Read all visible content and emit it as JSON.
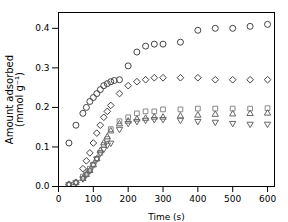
{
  "chart_data": {
    "type": "scatter",
    "xlabel": "Time (s)",
    "ylabel": "Amount adsorbed\n(mmol g⁻¹)",
    "xlim": [
      0,
      620
    ],
    "ylim": [
      0,
      0.44
    ],
    "xticks": [
      0,
      100,
      200,
      300,
      400,
      500,
      600
    ],
    "yticks": [
      {
        "value": 0.0,
        "label": "0.0"
      },
      0.1,
      0.2,
      0.3,
      0.4
    ],
    "series": [
      {
        "marker": "circle",
        "color": "#444444",
        "x": [
          30,
          50,
          70,
          80,
          90,
          100,
          110,
          120,
          130,
          140,
          150,
          160,
          175,
          200,
          225,
          250,
          275,
          300,
          350,
          400,
          450,
          500,
          550,
          600
        ],
        "values": [
          0.11,
          0.155,
          0.185,
          0.2,
          0.215,
          0.225,
          0.235,
          0.245,
          0.255,
          0.26,
          0.265,
          0.268,
          0.27,
          0.305,
          0.34,
          0.355,
          0.36,
          0.36,
          0.365,
          0.395,
          0.4,
          0.4,
          0.405,
          0.41
        ]
      },
      {
        "marker": "diamond",
        "color": "#444444",
        "x": [
          30,
          50,
          70,
          80,
          90,
          100,
          110,
          120,
          130,
          140,
          150,
          175,
          200,
          225,
          250,
          275,
          300,
          350,
          400,
          450,
          500,
          550,
          600
        ],
        "values": [
          0.005,
          0.01,
          0.045,
          0.065,
          0.085,
          0.11,
          0.135,
          0.155,
          0.175,
          0.19,
          0.205,
          0.235,
          0.255,
          0.265,
          0.27,
          0.275,
          0.275,
          0.275,
          0.275,
          0.27,
          0.27,
          0.27,
          0.27
        ]
      },
      {
        "marker": "square",
        "color": "#888888",
        "x": [
          30,
          50,
          70,
          80,
          90,
          100,
          110,
          120,
          130,
          140,
          150,
          175,
          200,
          225,
          250,
          275,
          300,
          350,
          400,
          450,
          500,
          550,
          600
        ],
        "values": [
          0.005,
          0.01,
          0.025,
          0.035,
          0.045,
          0.055,
          0.07,
          0.085,
          0.105,
          0.12,
          0.145,
          0.165,
          0.175,
          0.185,
          0.19,
          0.19,
          0.195,
          0.195,
          0.197,
          0.197,
          0.197,
          0.197,
          0.198
        ]
      },
      {
        "marker": "triangle-up",
        "color": "#666666",
        "x": [
          30,
          50,
          70,
          80,
          90,
          100,
          110,
          120,
          130,
          140,
          150,
          175,
          200,
          225,
          250,
          275,
          300,
          350,
          400,
          450,
          500,
          550,
          600
        ],
        "values": [
          0.005,
          0.01,
          0.02,
          0.03,
          0.04,
          0.055,
          0.07,
          0.09,
          0.11,
          0.125,
          0.14,
          0.158,
          0.165,
          0.17,
          0.172,
          0.175,
          0.175,
          0.178,
          0.18,
          0.182,
          0.183,
          0.184,
          0.185
        ]
      },
      {
        "marker": "triangle-down",
        "color": "#666666",
        "x": [
          30,
          50,
          70,
          80,
          90,
          100,
          110,
          120,
          130,
          140,
          150,
          175,
          200,
          225,
          250,
          275,
          300,
          350,
          400,
          450,
          500,
          550,
          600
        ],
        "values": [
          0.005,
          0.01,
          0.02,
          0.03,
          0.04,
          0.055,
          0.07,
          0.085,
          0.095,
          0.105,
          0.11,
          0.145,
          0.16,
          0.165,
          0.168,
          0.17,
          0.17,
          0.168,
          0.165,
          0.163,
          0.16,
          0.158,
          0.158
        ]
      }
    ]
  }
}
